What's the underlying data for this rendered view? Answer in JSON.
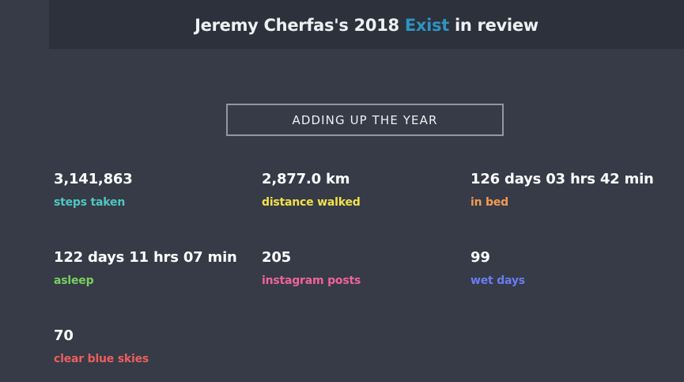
{
  "header": {
    "title_prefix": "Jeremy Cherfas's 2018 ",
    "brand": "Exist",
    "title_suffix": " in review",
    "brand_color": "#2f93c2"
  },
  "section": {
    "title": "ADDING UP THE YEAR"
  },
  "stats": [
    {
      "value": "3,141,863",
      "label": "steps taken",
      "color": "#4fc7c1"
    },
    {
      "value": "2,877.0 km",
      "label": "distance walked",
      "color": "#f2e14c"
    },
    {
      "value": "126 days 03 hrs 42 min",
      "label": "in bed",
      "color": "#f29a52"
    },
    {
      "value": "122 days 11 hrs 07 min",
      "label": "asleep",
      "color": "#7bcf5f"
    },
    {
      "value": "205",
      "label": "instagram posts",
      "color": "#f0639a"
    },
    {
      "value": "99",
      "label": "wet days",
      "color": "#6b7cf2"
    },
    {
      "value": "70",
      "label": "clear blue skies",
      "color": "#ec5e5e"
    }
  ],
  "colors": {
    "background": "#363b47",
    "header_background": "#2c313b"
  }
}
